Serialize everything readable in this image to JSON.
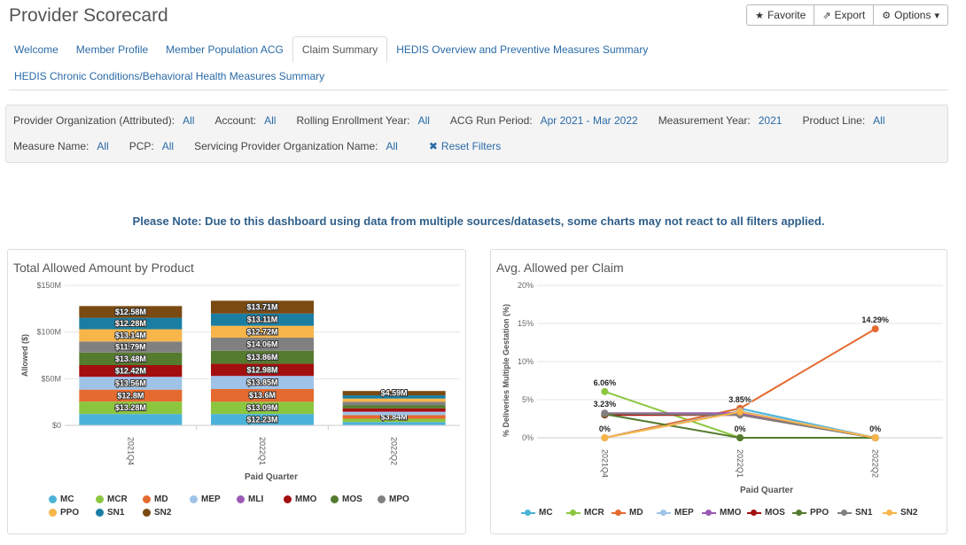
{
  "header": {
    "title": "Provider Scorecard"
  },
  "toolbar": {
    "favorite": "Favorite",
    "export": "Export",
    "options": "Options"
  },
  "tabs": [
    {
      "label": "Welcome",
      "active": false
    },
    {
      "label": "Member Profile",
      "active": false
    },
    {
      "label": "Member Population ACG",
      "active": false
    },
    {
      "label": "Claim Summary",
      "active": true
    },
    {
      "label": "HEDIS Overview and Preventive Measures Summary",
      "active": false
    },
    {
      "label": "HEDIS Chronic Conditions/Behavioral Health Measures Summary",
      "active": false
    }
  ],
  "filters": {
    "row1": [
      {
        "label": "Provider Organization (Attributed):",
        "value": "All"
      },
      {
        "label": "Account:",
        "value": "All"
      },
      {
        "label": "Rolling Enrollment Year:",
        "value": "All"
      },
      {
        "label": "ACG Run Period:",
        "value": "Apr 2021 - Mar 2022"
      },
      {
        "label": "Measurement Year:",
        "value": "2021"
      },
      {
        "label": "Product Line:",
        "value": "All"
      }
    ],
    "row2": [
      {
        "label": "Measure Name:",
        "value": "All"
      },
      {
        "label": "PCP:",
        "value": "All"
      },
      {
        "label": "Servicing Provider Organization Name:",
        "value": "All"
      }
    ],
    "reset_label": "Reset Filters"
  },
  "note": "Please Note: Due to this dashboard using data from multiple sources/datasets, some charts may not react to all filters applied.",
  "chart_data": [
    {
      "type": "bar",
      "stacked": true,
      "title": "Total Allowed Amount by Product",
      "xlabel": "Paid Quarter",
      "ylabel": "Allowed ($)",
      "ylim": [
        0,
        150
      ],
      "yticks": [
        "$0",
        "$50M",
        "$100M",
        "$150M"
      ],
      "categories": [
        "2021Q4",
        "2022Q1",
        "2022Q2"
      ],
      "series": [
        {
          "name": "MC",
          "color": "#4bb3d9",
          "values": [
            12.2,
            12.23,
            3.6
          ],
          "labels": [
            "",
            "$12.23M",
            ""
          ]
        },
        {
          "name": "MCR",
          "color": "#8cc63f",
          "values": [
            13.28,
            13.09,
            3.5
          ],
          "labels": [
            "$13.28M",
            "$13.09M",
            ""
          ]
        },
        {
          "name": "MD",
          "color": "#e56a2f",
          "values": [
            12.8,
            13.6,
            3.84
          ],
          "labels": [
            "$12.8M",
            "$13.6M",
            "$3.84M"
          ]
        },
        {
          "name": "MEP",
          "color": "#9fc3e7",
          "values": [
            13.56,
            13.85,
            3.5
          ],
          "labels": [
            "$13.56M",
            "$13.85M",
            ""
          ]
        },
        {
          "name": "MLI",
          "color": "#9b59b6",
          "values": [
            0.3,
            0.3,
            0.3
          ],
          "labels": [
            "",
            "",
            ""
          ]
        },
        {
          "name": "MMO",
          "color": "#a30f0f",
          "values": [
            12.42,
            12.98,
            3.5
          ],
          "labels": [
            "$12.42M",
            "$12.98M",
            ""
          ]
        },
        {
          "name": "MOS",
          "color": "#557b2f",
          "values": [
            13.48,
            13.86,
            3.5
          ],
          "labels": [
            "$13.48M",
            "$13.86M",
            ""
          ]
        },
        {
          "name": "MPO",
          "color": "#808080",
          "values": [
            11.79,
            14.06,
            3.5
          ],
          "labels": [
            "$11.79M",
            "$14.06M",
            ""
          ]
        },
        {
          "name": "PPO",
          "color": "#f7b54a",
          "values": [
            13.14,
            12.72,
            3.5
          ],
          "labels": [
            "$13.14M",
            "$12.72M",
            ""
          ]
        },
        {
          "name": "SN1",
          "color": "#1a7ea3",
          "values": [
            12.28,
            13.11,
            3.5
          ],
          "labels": [
            "$12.28M",
            "$13.11M",
            ""
          ]
        },
        {
          "name": "SN2",
          "color": "#7a4a12",
          "values": [
            12.58,
            13.71,
            4.59
          ],
          "labels": [
            "$12.58M",
            "$13.71M",
            "$4.59M"
          ]
        }
      ]
    },
    {
      "type": "line",
      "title": "Avg. Allowed per Claim",
      "xlabel": "Paid Quarter",
      "ylabel": "% Deliveries Multiple Gestation (%)",
      "ylim": [
        0,
        20
      ],
      "yticks": [
        "0%",
        "5%",
        "10%",
        "15%",
        "20%"
      ],
      "categories": [
        "2021Q4",
        "2022Q1",
        "2022Q2"
      ],
      "series": [
        {
          "name": "MC",
          "color": "#4bb3d9",
          "values": [
            0,
            3.85,
            0
          ]
        },
        {
          "name": "MCR",
          "color": "#8cc63f",
          "values": [
            6.06,
            0,
            0
          ]
        },
        {
          "name": "MD",
          "color": "#e56a2f",
          "values": [
            0,
            3.85,
            14.29
          ]
        },
        {
          "name": "MEP",
          "color": "#9fc3e7",
          "values": [
            0,
            3.5,
            0
          ]
        },
        {
          "name": "MMO",
          "color": "#9b59b6",
          "values": [
            3.23,
            3.23,
            0
          ]
        },
        {
          "name": "MOS",
          "color": "#a30f0f",
          "values": [
            3.0,
            3.0,
            0
          ]
        },
        {
          "name": "PPO",
          "color": "#557b2f",
          "values": [
            3.1,
            0,
            0
          ]
        },
        {
          "name": "SN1",
          "color": "#808080",
          "values": [
            3.2,
            3.0,
            0
          ]
        },
        {
          "name": "SN2",
          "color": "#f7b54a",
          "values": [
            0,
            3.4,
            0
          ]
        }
      ],
      "point_labels": [
        {
          "text": "6.06%",
          "cat": 0,
          "y": 6.06
        },
        {
          "text": "3.23%",
          "cat": 0,
          "y": 3.23
        },
        {
          "text": "0%",
          "cat": 0,
          "y": 0
        },
        {
          "text": "3.85%",
          "cat": 1,
          "y": 3.85
        },
        {
          "text": "0%",
          "cat": 1,
          "y": 0
        },
        {
          "text": "14.29%",
          "cat": 2,
          "y": 14.29
        },
        {
          "text": "0%",
          "cat": 2,
          "y": 0
        }
      ]
    }
  ],
  "legend_left": [
    "MC",
    "MCR",
    "MD",
    "MEP",
    "MLI",
    "MMO",
    "MOS",
    "MPO",
    "PPO",
    "SN1",
    "SN2"
  ],
  "legend_right": [
    "MC",
    "MCR",
    "MD",
    "MEP",
    "MMO",
    "MOS",
    "PPO",
    "SN1",
    "SN2"
  ]
}
